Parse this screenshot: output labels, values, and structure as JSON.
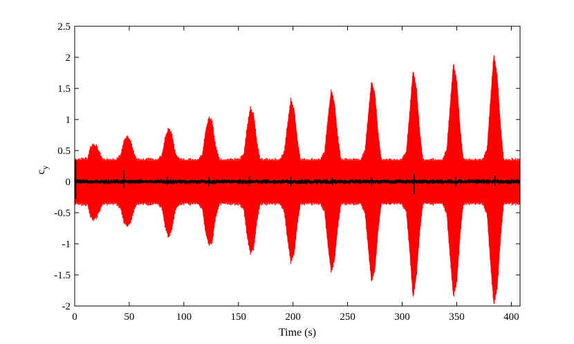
{
  "chart_data": {
    "type": "line",
    "title": "",
    "xlabel": "Time (s)",
    "ylabel": "c",
    "ylabel_subscript": "y",
    "xlim": [
      0,
      408
    ],
    "ylim": [
      -2,
      2.5
    ],
    "grid": false,
    "legend": "none",
    "x_ticks": [
      0,
      50,
      100,
      150,
      200,
      250,
      300,
      350,
      400
    ],
    "x_tick_labels": [
      "0",
      "50",
      "100",
      "150",
      "200",
      "250",
      "300",
      "350",
      "400"
    ],
    "y_ticks": [
      -2,
      -1.5,
      -1,
      -0.5,
      0,
      0.5,
      1,
      1.5,
      2,
      2.5
    ],
    "y_tick_labels": [
      "-2",
      "-1.5",
      "-1",
      "-0.5",
      "0",
      "0.5",
      "1",
      "1.5",
      "2",
      "2.5"
    ],
    "series": [
      {
        "color": "#ff0000",
        "baseline_amplitude": 0.33,
        "envelope_upper": {
          "x": [
            0,
            12,
            14,
            17,
            20,
            24,
            26,
            30,
            38,
            42,
            45,
            48,
            51,
            54,
            57,
            60,
            68,
            76,
            80,
            83,
            86,
            89,
            92,
            96,
            104,
            113,
            117,
            120,
            123,
            126,
            129,
            133,
            141,
            151,
            155,
            158,
            161,
            164,
            167,
            170,
            178,
            188,
            192,
            195,
            198,
            201,
            204,
            207,
            216,
            225,
            229,
            232,
            235,
            238,
            241,
            244,
            253,
            262,
            266,
            269,
            272,
            275,
            278,
            281,
            290,
            300,
            304,
            307,
            310,
            313,
            316,
            319,
            327,
            337,
            341,
            344,
            347,
            350,
            353,
            356,
            365,
            374,
            378,
            381,
            384,
            387,
            390,
            393,
            400,
            408
          ],
          "y": [
            0.33,
            0.35,
            0.52,
            0.58,
            0.55,
            0.4,
            0.33,
            0.33,
            0.33,
            0.4,
            0.62,
            0.72,
            0.65,
            0.45,
            0.33,
            0.33,
            0.33,
            0.33,
            0.4,
            0.7,
            0.83,
            0.75,
            0.45,
            0.33,
            0.33,
            0.33,
            0.42,
            0.8,
            1.02,
            0.95,
            0.55,
            0.33,
            0.33,
            0.33,
            0.42,
            0.85,
            1.17,
            1.05,
            0.6,
            0.33,
            0.33,
            0.33,
            0.45,
            0.9,
            1.3,
            1.15,
            0.65,
            0.33,
            0.33,
            0.33,
            0.45,
            1.0,
            1.45,
            1.25,
            0.7,
            0.33,
            0.33,
            0.33,
            0.47,
            1.05,
            1.6,
            1.4,
            0.75,
            0.33,
            0.33,
            0.33,
            0.48,
            1.1,
            1.77,
            1.5,
            0.8,
            0.33,
            0.33,
            0.33,
            0.5,
            1.2,
            1.88,
            1.6,
            0.85,
            0.33,
            0.33,
            0.33,
            0.52,
            1.3,
            2.02,
            1.7,
            0.9,
            0.33,
            0.33,
            0.33
          ]
        },
        "envelope_lower": {
          "x": [
            0,
            12,
            14,
            17,
            20,
            24,
            26,
            30,
            38,
            42,
            45,
            48,
            51,
            54,
            57,
            60,
            68,
            76,
            80,
            83,
            86,
            89,
            92,
            96,
            104,
            113,
            117,
            120,
            123,
            126,
            129,
            133,
            141,
            151,
            155,
            158,
            161,
            164,
            167,
            170,
            178,
            188,
            192,
            195,
            198,
            201,
            204,
            207,
            216,
            225,
            229,
            232,
            235,
            238,
            241,
            244,
            253,
            262,
            266,
            269,
            272,
            275,
            278,
            281,
            290,
            300,
            304,
            307,
            310,
            313,
            316,
            319,
            327,
            337,
            341,
            344,
            347,
            350,
            353,
            356,
            365,
            374,
            378,
            381,
            384,
            387,
            390,
            393,
            400,
            408
          ],
          "y": [
            -0.33,
            -0.35,
            -0.52,
            -0.6,
            -0.55,
            -0.4,
            -0.33,
            -0.33,
            -0.33,
            -0.4,
            -0.62,
            -0.7,
            -0.65,
            -0.45,
            -0.33,
            -0.33,
            -0.33,
            -0.33,
            -0.4,
            -0.72,
            -0.87,
            -0.75,
            -0.45,
            -0.33,
            -0.33,
            -0.33,
            -0.42,
            -0.8,
            -1.0,
            -0.95,
            -0.55,
            -0.33,
            -0.33,
            -0.33,
            -0.42,
            -0.85,
            -1.13,
            -1.05,
            -0.6,
            -0.33,
            -0.33,
            -0.33,
            -0.45,
            -0.9,
            -1.27,
            -1.15,
            -0.65,
            -0.33,
            -0.33,
            -0.33,
            -0.45,
            -1.0,
            -1.43,
            -1.25,
            -0.7,
            -0.33,
            -0.33,
            -0.33,
            -0.47,
            -1.05,
            -1.6,
            -1.4,
            -0.75,
            -0.33,
            -0.33,
            -0.33,
            -0.48,
            -1.1,
            -1.85,
            -1.5,
            -0.8,
            -0.33,
            -0.33,
            -0.33,
            -0.5,
            -1.2,
            -1.83,
            -1.6,
            -0.85,
            -0.33,
            -0.33,
            -0.33,
            -0.52,
            -1.3,
            -1.95,
            -1.7,
            -0.9,
            -0.33,
            -0.33,
            -0.33
          ]
        }
      },
      {
        "color": "#000000",
        "baseline_amplitude": 0.03,
        "spikes": [
          {
            "x": 1,
            "y": [
              -0.28,
              0.35
            ]
          },
          {
            "x": 45,
            "y": [
              -0.1,
              0.18
            ]
          },
          {
            "x": 85,
            "y": [
              -0.06,
              0.08
            ]
          },
          {
            "x": 123,
            "y": [
              -0.08,
              0.08
            ]
          },
          {
            "x": 160,
            "y": [
              -0.07,
              0.09
            ]
          },
          {
            "x": 198,
            "y": [
              -0.07,
              0.08
            ]
          },
          {
            "x": 236,
            "y": [
              -0.06,
              0.07
            ]
          },
          {
            "x": 272,
            "y": [
              -0.06,
              0.07
            ]
          },
          {
            "x": 311,
            "y": [
              -0.2,
              0.12
            ]
          },
          {
            "x": 349,
            "y": [
              -0.08,
              0.08
            ]
          },
          {
            "x": 385,
            "y": [
              -0.07,
              0.1
            ]
          }
        ]
      }
    ]
  }
}
